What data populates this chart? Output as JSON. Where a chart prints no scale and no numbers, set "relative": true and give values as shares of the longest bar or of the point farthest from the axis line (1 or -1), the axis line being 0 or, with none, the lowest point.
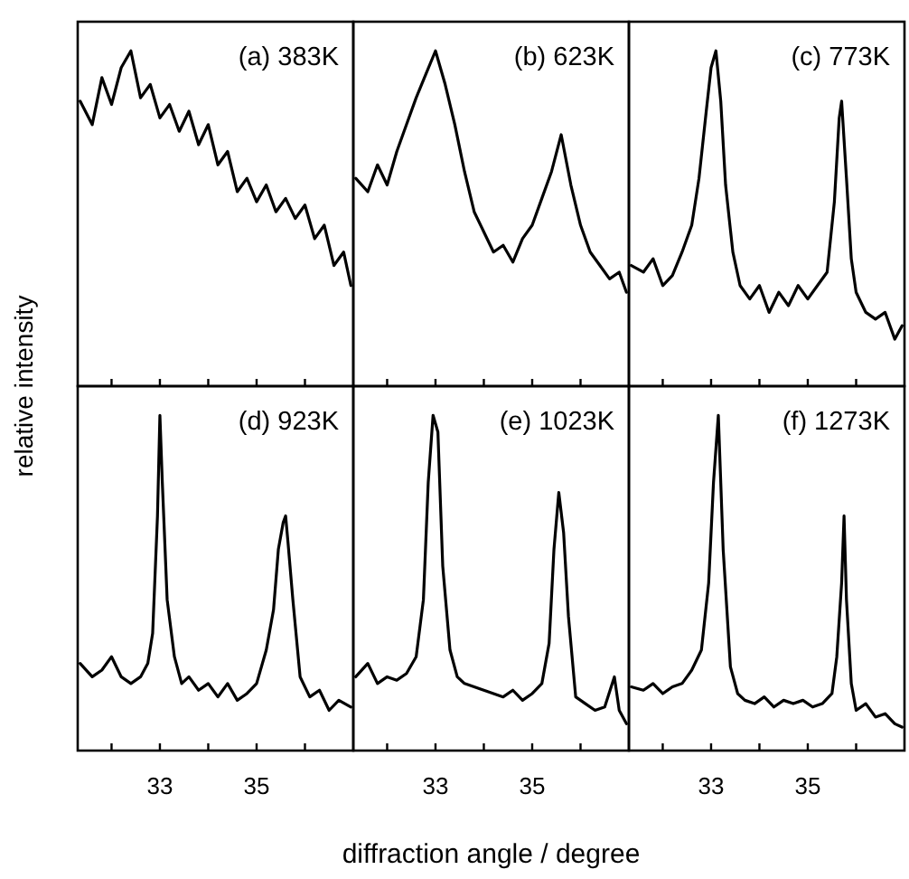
{
  "chart_data": [
    {
      "type": "line",
      "relative": true,
      "title": "(a) 383K",
      "ylabel": "relative intensity",
      "color": "#000000",
      "xlim": [
        31.3,
        37.0
      ],
      "xticks": [
        {
          "value": 32,
          "label": null
        },
        {
          "value": 33,
          "label": null
        },
        {
          "value": 34,
          "label": null
        },
        {
          "value": 35,
          "label": null
        },
        {
          "value": 36,
          "label": null
        }
      ],
      "tick_labels": false,
      "x": [
        31.35,
        31.6,
        31.8,
        32.0,
        32.2,
        32.4,
        32.6,
        32.8,
        33.0,
        33.2,
        33.4,
        33.6,
        33.8,
        34.0,
        34.2,
        34.4,
        34.6,
        34.8,
        35.0,
        35.2,
        35.4,
        35.6,
        35.8,
        36.0,
        36.2,
        36.4,
        36.6,
        36.8,
        36.95
      ],
      "values": [
        0.85,
        0.78,
        0.92,
        0.84,
        0.95,
        1,
        0.86,
        0.9,
        0.8,
        0.84,
        0.76,
        0.82,
        0.72,
        0.78,
        0.66,
        0.7,
        0.58,
        0.62,
        0.55,
        0.6,
        0.52,
        0.56,
        0.5,
        0.54,
        0.44,
        0.48,
        0.36,
        0.4,
        0.3
      ]
    },
    {
      "type": "line",
      "relative": true,
      "title": "(b) 623K",
      "color": "#000000",
      "xlim": [
        31.3,
        37.0
      ],
      "xticks": [
        {
          "value": 32,
          "label": null
        },
        {
          "value": 33,
          "label": null
        },
        {
          "value": 34,
          "label": null
        },
        {
          "value": 35,
          "label": null
        },
        {
          "value": 36,
          "label": null
        }
      ],
      "tick_labels": false,
      "x": [
        31.35,
        31.6,
        31.8,
        32.0,
        32.2,
        32.4,
        32.6,
        32.8,
        33.0,
        33.2,
        33.4,
        33.6,
        33.8,
        34.0,
        34.2,
        34.4,
        34.6,
        34.8,
        35.0,
        35.2,
        35.4,
        35.6,
        35.8,
        36.0,
        36.2,
        36.4,
        36.6,
        36.8,
        36.95
      ],
      "values": [
        0.62,
        0.58,
        0.66,
        0.6,
        0.7,
        0.78,
        0.86,
        0.93,
        1,
        0.9,
        0.78,
        0.64,
        0.52,
        0.46,
        0.4,
        0.42,
        0.37,
        0.44,
        0.48,
        0.56,
        0.64,
        0.75,
        0.6,
        0.48,
        0.4,
        0.36,
        0.32,
        0.34,
        0.28
      ]
    },
    {
      "type": "line",
      "relative": true,
      "title": "(c) 773K",
      "color": "#000000",
      "xlim": [
        31.3,
        37.0
      ],
      "xticks": [
        {
          "value": 32,
          "label": null
        },
        {
          "value": 33,
          "label": null
        },
        {
          "value": 34,
          "label": null
        },
        {
          "value": 35,
          "label": null
        },
        {
          "value": 36,
          "label": null
        }
      ],
      "tick_labels": false,
      "x": [
        31.35,
        31.6,
        31.8,
        32.0,
        32.2,
        32.4,
        32.6,
        32.75,
        32.9,
        33.0,
        33.1,
        33.2,
        33.3,
        33.45,
        33.6,
        33.8,
        34.0,
        34.2,
        34.4,
        34.6,
        34.8,
        35.0,
        35.2,
        35.4,
        35.55,
        35.65,
        35.7,
        35.8,
        35.9,
        36.0,
        36.2,
        36.4,
        36.6,
        36.8,
        36.95
      ],
      "values": [
        0.36,
        0.34,
        0.38,
        0.3,
        0.33,
        0.4,
        0.48,
        0.62,
        0.82,
        0.95,
        1,
        0.85,
        0.6,
        0.4,
        0.3,
        0.26,
        0.3,
        0.22,
        0.28,
        0.24,
        0.3,
        0.26,
        0.3,
        0.34,
        0.55,
        0.8,
        0.85,
        0.62,
        0.38,
        0.28,
        0.22,
        0.2,
        0.22,
        0.14,
        0.18
      ]
    },
    {
      "type": "line",
      "relative": true,
      "title": "(d) 923K",
      "color": "#000000",
      "xlim": [
        31.3,
        37.0
      ],
      "xticks": [
        {
          "value": 32,
          "label": null
        },
        {
          "value": 33,
          "label": "33"
        },
        {
          "value": 34,
          "label": null
        },
        {
          "value": 35,
          "label": "35"
        },
        {
          "value": 36,
          "label": null
        }
      ],
      "tick_labels": "x",
      "x": [
        31.35,
        31.6,
        31.8,
        32.0,
        32.2,
        32.4,
        32.6,
        32.75,
        32.85,
        32.95,
        33.0,
        33.05,
        33.15,
        33.3,
        33.45,
        33.6,
        33.8,
        34.0,
        34.2,
        34.4,
        34.6,
        34.8,
        35.0,
        35.2,
        35.35,
        35.45,
        35.55,
        35.6,
        35.65,
        35.75,
        35.9,
        36.1,
        36.3,
        36.5,
        36.7,
        36.95
      ],
      "values": [
        0.26,
        0.22,
        0.24,
        0.28,
        0.22,
        0.2,
        0.22,
        0.26,
        0.35,
        0.7,
        1,
        0.8,
        0.45,
        0.28,
        0.2,
        0.22,
        0.18,
        0.2,
        0.16,
        0.2,
        0.15,
        0.17,
        0.2,
        0.3,
        0.42,
        0.6,
        0.68,
        0.7,
        0.62,
        0.45,
        0.22,
        0.16,
        0.18,
        0.12,
        0.15,
        0.13
      ]
    },
    {
      "type": "line",
      "relative": true,
      "title": "(e) 1023K",
      "xlabel": "diffraction angle / degree",
      "color": "#000000",
      "xlim": [
        31.3,
        37.0
      ],
      "xticks": [
        {
          "value": 32,
          "label": null
        },
        {
          "value": 33,
          "label": "33"
        },
        {
          "value": 34,
          "label": null
        },
        {
          "value": 35,
          "label": "35"
        },
        {
          "value": 36,
          "label": null
        }
      ],
      "tick_labels": "x",
      "x": [
        31.35,
        31.6,
        31.8,
        32.0,
        32.2,
        32.4,
        32.6,
        32.75,
        32.85,
        32.95,
        33.05,
        33.15,
        33.3,
        33.45,
        33.6,
        33.8,
        34.0,
        34.2,
        34.4,
        34.6,
        34.8,
        35.0,
        35.2,
        35.35,
        35.45,
        35.55,
        35.65,
        35.75,
        35.9,
        36.1,
        36.3,
        36.5,
        36.7,
        36.8,
        36.95
      ],
      "values": [
        0.22,
        0.26,
        0.2,
        0.22,
        0.21,
        0.23,
        0.28,
        0.45,
        0.8,
        1,
        0.95,
        0.55,
        0.3,
        0.22,
        0.2,
        0.19,
        0.18,
        0.17,
        0.16,
        0.18,
        0.15,
        0.17,
        0.2,
        0.32,
        0.6,
        0.77,
        0.65,
        0.4,
        0.16,
        0.14,
        0.12,
        0.13,
        0.22,
        0.12,
        0.08
      ]
    },
    {
      "type": "line",
      "relative": true,
      "title": "(f) 1273K",
      "color": "#000000",
      "xlim": [
        31.3,
        37.0
      ],
      "xticks": [
        {
          "value": 32,
          "label": null
        },
        {
          "value": 33,
          "label": "33"
        },
        {
          "value": 34,
          "label": null
        },
        {
          "value": 35,
          "label": "35"
        },
        {
          "value": 36,
          "label": null
        }
      ],
      "tick_labels": "x",
      "x": [
        31.35,
        31.6,
        31.8,
        32.0,
        32.2,
        32.4,
        32.6,
        32.8,
        32.95,
        33.05,
        33.15,
        33.25,
        33.4,
        33.55,
        33.7,
        33.9,
        34.1,
        34.3,
        34.5,
        34.7,
        34.9,
        35.1,
        35.3,
        35.5,
        35.6,
        35.7,
        35.75,
        35.8,
        35.9,
        36.0,
        36.2,
        36.4,
        36.6,
        36.8,
        36.95
      ],
      "values": [
        0.19,
        0.18,
        0.2,
        0.17,
        0.19,
        0.2,
        0.24,
        0.3,
        0.5,
        0.8,
        1,
        0.6,
        0.25,
        0.17,
        0.15,
        0.14,
        0.16,
        0.13,
        0.15,
        0.14,
        0.15,
        0.13,
        0.14,
        0.17,
        0.28,
        0.5,
        0.7,
        0.45,
        0.2,
        0.12,
        0.14,
        0.1,
        0.11,
        0.08,
        0.07
      ]
    }
  ]
}
